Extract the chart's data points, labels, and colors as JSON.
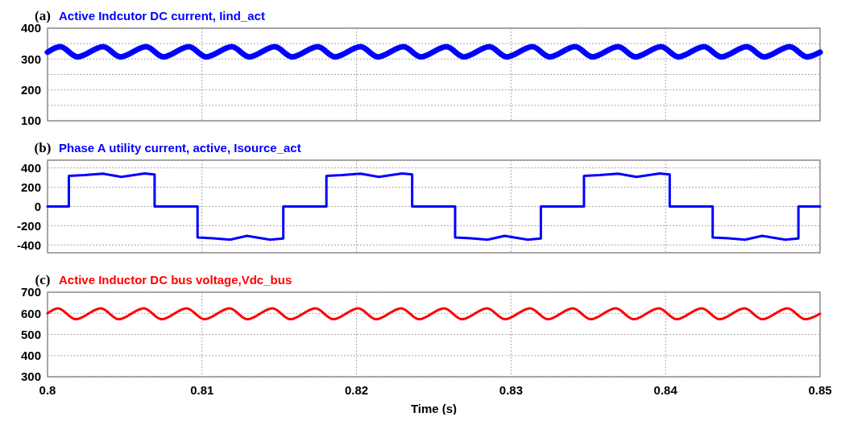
{
  "chart_data": [
    {
      "type": "line",
      "title": "Active Indcutor DC current, Iind_act",
      "annotations": [
        "(a)"
      ],
      "xlim": [
        0.8,
        0.85
      ],
      "xticks": [
        0.8,
        0.81,
        0.82,
        0.83,
        0.84,
        0.85
      ],
      "ylim": [
        100,
        400
      ],
      "yticks": [
        100,
        {
          "value": 150,
          "label": null
        },
        200,
        {
          "value": 250,
          "label": null
        },
        300,
        {
          "value": 350,
          "label": null
        },
        400
      ],
      "grid": true,
      "tick_labels": "y",
      "x": [
        0.8,
        0.80082,
        0.80194,
        0.8036,
        0.80472,
        0.80638,
        0.8075,
        0.80915,
        0.81027,
        0.81193,
        0.81305,
        0.81471,
        0.81583,
        0.81749,
        0.81861,
        0.82026,
        0.82138,
        0.82304,
        0.82416,
        0.82582,
        0.82694,
        0.8286,
        0.82972,
        0.83138,
        0.8325,
        0.83415,
        0.83527,
        0.83693,
        0.83805,
        0.83971,
        0.84083,
        0.84249,
        0.84361,
        0.84526,
        0.84638,
        0.84804,
        0.84916,
        0.85
      ],
      "series": [
        {
          "color": "#0000ff",
          "values": [
            322,
            340,
            307,
            340,
            307,
            340,
            307,
            340,
            307,
            340,
            307,
            340,
            307,
            340,
            307,
            340,
            307,
            340,
            307,
            340,
            307,
            340,
            307,
            340,
            307,
            340,
            307,
            340,
            307,
            340,
            307,
            340,
            307,
            340,
            307,
            340,
            307,
            322
          ]
        }
      ]
    },
    {
      "type": "line",
      "title": "Phase A utility current, active, Isource_act",
      "annotations": [
        "(b)"
      ],
      "xlim": [
        0.8,
        0.85
      ],
      "xticks": [
        0.8,
        0.81,
        0.82,
        0.83,
        0.84,
        0.85
      ],
      "ylim": [
        -480,
        480
      ],
      "yticks": [
        -400,
        -200,
        0,
        200,
        400
      ],
      "grid": true,
      "tick_labels": "y",
      "x": [
        0.8,
        0.80138,
        0.80138,
        0.80238,
        0.80358,
        0.80478,
        0.80628,
        0.80693,
        0.80693,
        0.80971,
        0.80971,
        0.81071,
        0.81181,
        0.81291,
        0.81441,
        0.81526,
        0.81526,
        0.81805,
        0.81805,
        0.81905,
        0.82025,
        0.82145,
        0.82295,
        0.8236,
        0.8236,
        0.82638,
        0.82638,
        0.82738,
        0.82848,
        0.82958,
        0.83108,
        0.83193,
        0.83193,
        0.83472,
        0.83472,
        0.83572,
        0.83692,
        0.83812,
        0.83962,
        0.84027,
        0.84027,
        0.84305,
        0.84305,
        0.84405,
        0.84515,
        0.84625,
        0.84775,
        0.8486,
        0.8486,
        0.85
      ],
      "series": [
        {
          "color": "#0000ff",
          "values": [
            0,
            0,
            318,
            326,
            340,
            306,
            342,
            332,
            0,
            0,
            -322,
            -330,
            -345,
            -305,
            -345,
            -332,
            0,
            0,
            318,
            326,
            340,
            306,
            342,
            332,
            0,
            0,
            -322,
            -330,
            -345,
            -305,
            -345,
            -332,
            0,
            0,
            318,
            326,
            340,
            306,
            342,
            332,
            0,
            0,
            -322,
            -330,
            -345,
            -305,
            -345,
            -332,
            0,
            0
          ]
        }
      ]
    },
    {
      "type": "line",
      "title": "Active Inductor DC bus voltage,Vdc_bus",
      "annotations": [
        "(c)"
      ],
      "xlabel": "Time (s)",
      "xlim": [
        0.8,
        0.85
      ],
      "xticks": [
        0.8,
        0.81,
        0.82,
        0.83,
        0.84,
        0.85
      ],
      "ylim": [
        300,
        700
      ],
      "yticks": [
        300,
        400,
        500,
        600,
        700
      ],
      "grid": true,
      "x": [
        0.8,
        0.80067,
        0.80183,
        0.80345,
        0.80461,
        0.80623,
        0.80739,
        0.809,
        0.81016,
        0.81178,
        0.81294,
        0.81456,
        0.81572,
        0.81734,
        0.8185,
        0.82011,
        0.82127,
        0.82289,
        0.82405,
        0.82567,
        0.82683,
        0.82845,
        0.82961,
        0.83123,
        0.83239,
        0.834,
        0.83516,
        0.83678,
        0.83794,
        0.83956,
        0.84072,
        0.84234,
        0.8435,
        0.84511,
        0.84627,
        0.84789,
        0.84905,
        0.85
      ],
      "series": [
        {
          "color": "#ff0000",
          "values": [
            600,
            624,
            572,
            624,
            572,
            624,
            572,
            624,
            572,
            624,
            572,
            624,
            572,
            624,
            572,
            624,
            572,
            624,
            572,
            624,
            572,
            624,
            572,
            624,
            572,
            624,
            572,
            624,
            572,
            624,
            572,
            624,
            572,
            624,
            572,
            624,
            572,
            598
          ]
        }
      ]
    }
  ]
}
